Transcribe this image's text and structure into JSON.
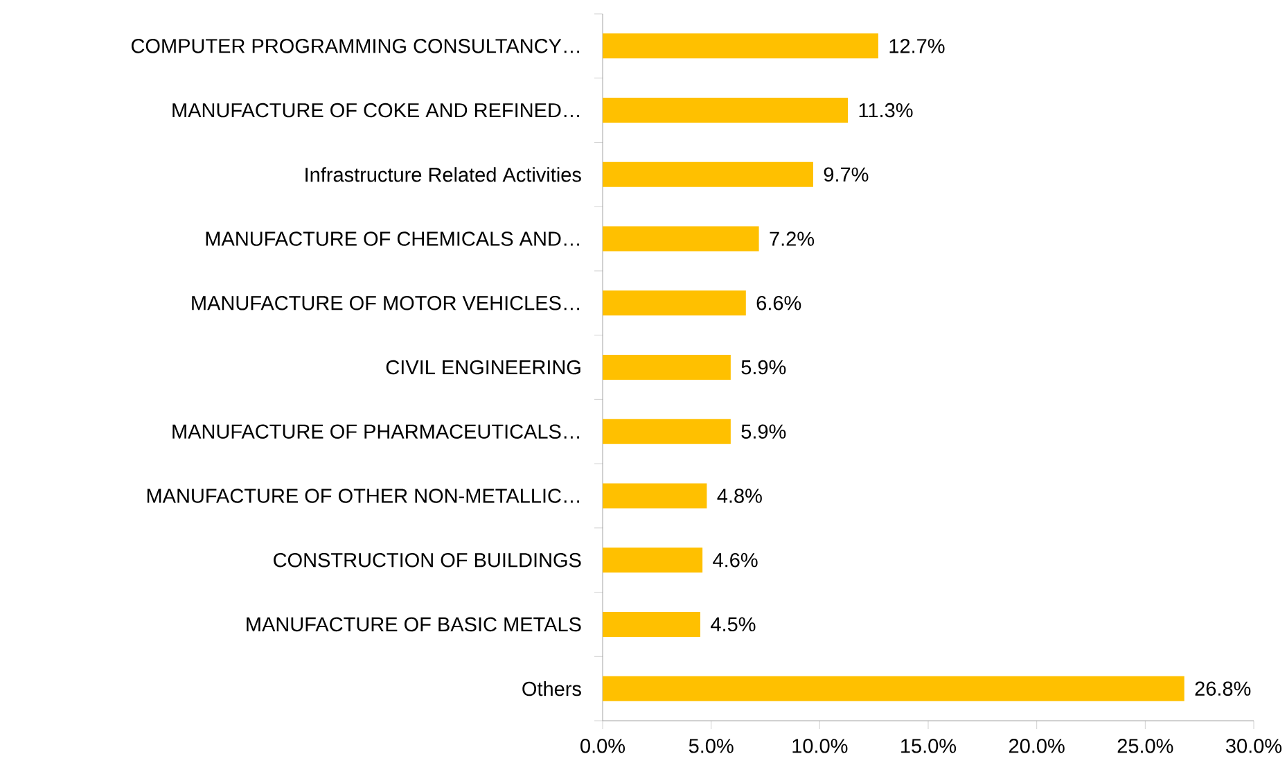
{
  "chart_data": {
    "type": "bar",
    "orientation": "horizontal",
    "categories": [
      "COMPUTER PROGRAMMING  CONSULTANCY…",
      "MANUFACTURE OF COKE AND REFINED…",
      "Infrastructure Related Activities",
      "MANUFACTURE OF CHEMICALS AND…",
      "MANUFACTURE OF MOTOR VEHICLES…",
      "CIVIL ENGINEERING",
      "MANUFACTURE OF PHARMACEUTICALS…",
      "MANUFACTURE OF OTHER NON-METALLIC…",
      "CONSTRUCTION OF BUILDINGS",
      "MANUFACTURE OF BASIC METALS",
      "Others"
    ],
    "values": [
      12.7,
      11.3,
      9.7,
      7.2,
      6.6,
      5.9,
      5.9,
      4.8,
      4.6,
      4.5,
      26.8
    ],
    "value_labels": [
      "12.7%",
      "11.3%",
      "9.7%",
      "7.2%",
      "6.6%",
      "5.9%",
      "5.9%",
      "4.8%",
      "4.6%",
      "4.5%",
      "26.8%"
    ],
    "color": "#ffc000",
    "xlim": [
      0,
      30
    ],
    "xticks": [
      {
        "value": 0,
        "label": "0.0%"
      },
      {
        "value": 5,
        "label": "5.0%"
      },
      {
        "value": 10,
        "label": "10.0%"
      },
      {
        "value": 15,
        "label": "15.0%"
      },
      {
        "value": 20,
        "label": "20.0%"
      },
      {
        "value": 25,
        "label": "25.0%"
      },
      {
        "value": 30,
        "label": "30.0%"
      }
    ],
    "grid": false
  }
}
